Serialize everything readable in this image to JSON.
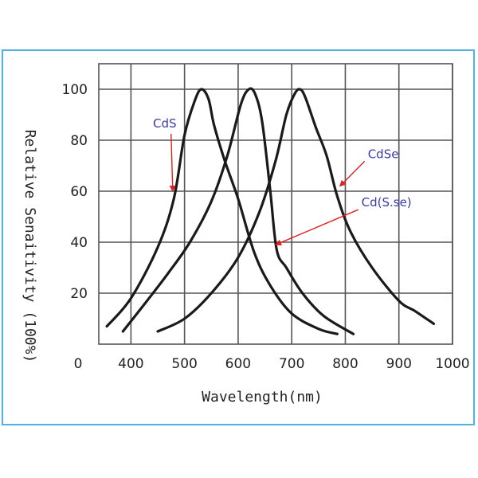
{
  "colors": {
    "frame": "#4db3e6",
    "curve": "#1a1a1a",
    "label": "#3a3aa8",
    "arrow": "#e02020"
  },
  "chart_data": {
    "type": "line",
    "title": "",
    "xlabel": "Wavelength(nm)",
    "ylabel": "Relative Senaitivity (100%)",
    "xlim": [
      340,
      1000
    ],
    "ylim": [
      0,
      110
    ],
    "x_ticks": [
      400,
      500,
      600,
      700,
      800,
      900,
      1000
    ],
    "y_ticks": [
      20,
      40,
      60,
      80,
      100
    ],
    "origin_label": "0",
    "grid": true,
    "series": [
      {
        "name": "CdS",
        "x": [
          355,
          400,
          450,
          480,
          500,
          520,
          532,
          545,
          555,
          575,
          600,
          630,
          660,
          700,
          750,
          785
        ],
        "y": [
          7,
          18,
          38,
          57,
          82,
          96,
          100,
          96,
          86,
          72,
          57,
          36,
          23,
          12,
          6,
          4
        ]
      },
      {
        "name": "Cd(S.se)",
        "x": [
          385,
          430,
          470,
          510,
          550,
          580,
          605,
          620,
          632,
          645,
          660,
          672,
          690,
          720,
          760,
          815
        ],
        "y": [
          5,
          17,
          28,
          40,
          56,
          74,
          94,
          100,
          98,
          87,
          60,
          37,
          30,
          20,
          11,
          4
        ]
      },
      {
        "name": "CdSe",
        "x": [
          450,
          500,
          550,
          600,
          640,
          670,
          690,
          705,
          715,
          725,
          745,
          765,
          785,
          810,
          850,
          900,
          930,
          965
        ],
        "y": [
          5,
          10,
          20,
          34,
          52,
          72,
          90,
          98,
          100,
          97,
          85,
          74,
          58,
          44,
          30,
          17,
          13,
          8
        ]
      }
    ],
    "annotations": [
      {
        "text": "CdS",
        "series": "CdS",
        "label_xy": [
          463,
          85
        ],
        "arrow_to": [
          478,
          60
        ]
      },
      {
        "text": "CdSe",
        "series": "CdSe",
        "label_xy": [
          842,
          73
        ],
        "arrow_to": [
          790,
          62
        ]
      },
      {
        "text": "Cd(S.se)",
        "series": "Cd(S.se)",
        "label_xy": [
          830,
          54
        ],
        "arrow_to": [
          670,
          39
        ]
      }
    ]
  }
}
